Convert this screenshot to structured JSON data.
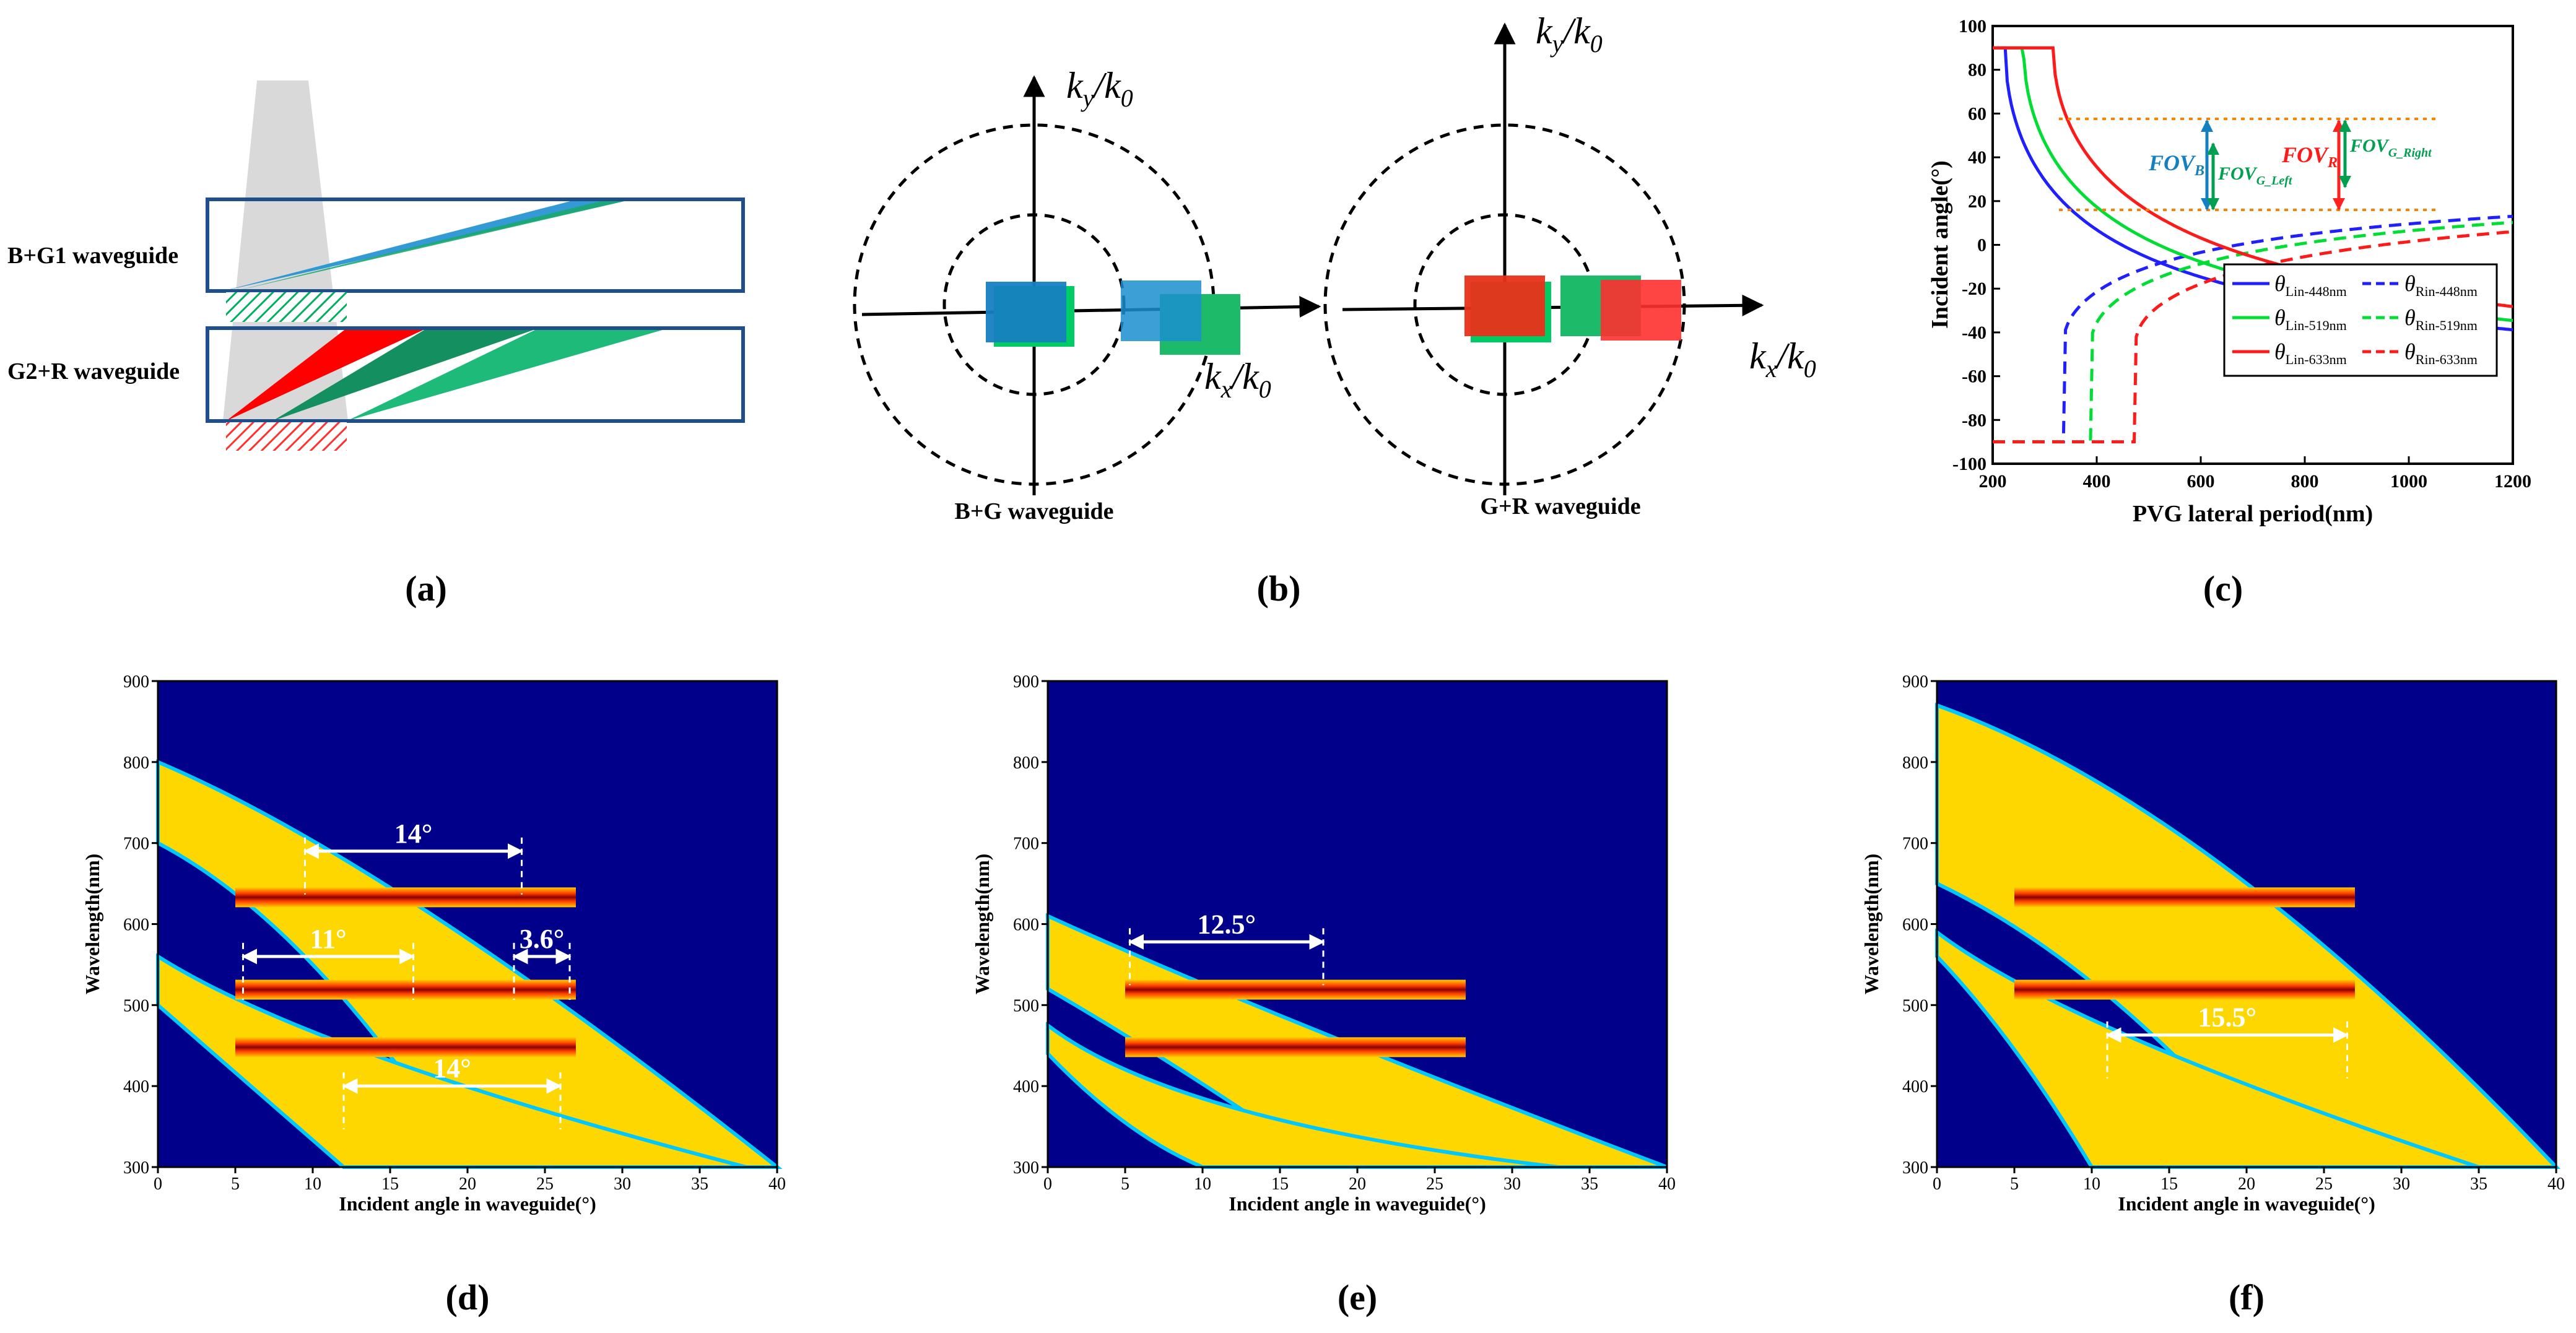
{
  "panels": {
    "a": {
      "label": "(a)",
      "wg1_label": "B+G1 waveguide",
      "wg2_label": "G2+R waveguide"
    },
    "b": {
      "label": "(b)",
      "ky": "k",
      "ky_sub": "y",
      "k0": "k",
      "k0_sub": "0",
      "kx": "k",
      "kx_sub": "x",
      "left_caption": "B+G waveguide",
      "right_caption": "G+R waveguide"
    },
    "c": {
      "label": "(c)",
      "xlabel": "PVG lateral period(nm)",
      "ylabel": "Incident angle(°)",
      "xticks": [
        "200",
        "400",
        "600",
        "800",
        "1000",
        "1200"
      ],
      "yticks": [
        "-100",
        "-80",
        "-60",
        "-40",
        "-20",
        "0",
        "20",
        "40",
        "60",
        "80",
        "100"
      ],
      "legend": [
        {
          "theta": "θ",
          "sub": "Lin-448nm",
          "color": "#1f1fff",
          "dash": false
        },
        {
          "theta": "θ",
          "sub": "Rin-448nm",
          "color": "#1f1fff",
          "dash": true
        },
        {
          "theta": "θ",
          "sub": "Lin-519nm",
          "color": "#00dd33",
          "dash": false
        },
        {
          "theta": "θ",
          "sub": "Rin-519nm",
          "color": "#00dd33",
          "dash": true
        },
        {
          "theta": "θ",
          "sub": "Lin-633nm",
          "color": "#ff1a1a",
          "dash": false
        },
        {
          "theta": "θ",
          "sub": "Rin-633nm",
          "color": "#ff1a1a",
          "dash": true
        }
      ],
      "fov_b": "FOV",
      "fov_b_sub": "B",
      "fov_gleft": "FOV",
      "fov_gleft_sub": "G_Left",
      "fov_r": "FOV",
      "fov_r_sub": "R",
      "fov_gright": "FOV",
      "fov_gright_sub": "G_Right"
    },
    "d": {
      "label": "(d)",
      "xlabel": "Incident angle in waveguide(°)",
      "ylabel": "Wavelength(nm)",
      "xticks": [
        "0",
        "5",
        "10",
        "15",
        "20",
        "25",
        "30",
        "35",
        "40"
      ],
      "yticks": [
        "300",
        "400",
        "500",
        "600",
        "700",
        "800",
        "900"
      ],
      "ann1": "14°",
      "ann2": "11°",
      "ann3": "3.6°",
      "ann4": "14°"
    },
    "e": {
      "label": "(e)",
      "xlabel": "Incident angle in waveguide(°)",
      "ylabel": "Wavelength(nm)",
      "xticks": [
        "0",
        "5",
        "10",
        "15",
        "20",
        "25",
        "30",
        "35",
        "40"
      ],
      "yticks": [
        "300",
        "400",
        "500",
        "600",
        "700",
        "800",
        "900"
      ],
      "ann1": "12.5°"
    },
    "f": {
      "label": "(f)",
      "xlabel": "Incident angle in waveguide(°)",
      "ylabel": "Wavelength(nm)",
      "xticks": [
        "0",
        "5",
        "10",
        "15",
        "20",
        "25",
        "30",
        "35",
        "40"
      ],
      "yticks": [
        "300",
        "400",
        "500",
        "600",
        "700",
        "800",
        "900"
      ],
      "ann1": "15.5°"
    }
  },
  "chart_data": [
    {
      "type": "line",
      "panel": "c",
      "xlabel": "PVG lateral period(nm)",
      "ylabel": "Incident angle(°)",
      "xlim": [
        200,
        1200
      ],
      "ylim": [
        -100,
        100
      ],
      "series": [
        {
          "name": "θLin-448nm",
          "wavelength": 448,
          "kind": "Lin"
        },
        {
          "name": "θRin-448nm",
          "wavelength": 448,
          "kind": "Rin"
        },
        {
          "name": "θLin-519nm",
          "wavelength": 519,
          "kind": "Lin"
        },
        {
          "name": "θRin-519nm",
          "wavelength": 519,
          "kind": "Rin"
        },
        {
          "name": "θLin-633nm",
          "wavelength": 633,
          "kind": "Lin"
        },
        {
          "name": "θRin-633nm",
          "wavelength": 633,
          "kind": "Rin"
        }
      ],
      "fov_lines_deg": [
        15,
        57
      ],
      "fov_period_nm": {
        "B": 620,
        "G": 640,
        "R": 870,
        "G_right": 885
      }
    },
    {
      "type": "heatmap",
      "panel": "d",
      "xlim": [
        0,
        40
      ],
      "ylim": [
        300,
        900
      ],
      "bars": [
        {
          "wl": 633,
          "x0": 5,
          "x1": 27
        },
        {
          "wl": 519,
          "x0": 5,
          "x1": 27
        },
        {
          "wl": 448,
          "x0": 5,
          "x1": 27
        }
      ],
      "annotations": [
        {
          "text": "14°",
          "x0": 9.5,
          "x1": 23.5,
          "wl": 690
        },
        {
          "text": "11°",
          "x0": 5.5,
          "x1": 16.5,
          "wl": 560
        },
        {
          "text": "3.6°",
          "x0": 23,
          "x1": 26.6,
          "wl": 560
        },
        {
          "text": "14°",
          "x0": 12,
          "x1": 26,
          "wl": 400
        }
      ]
    },
    {
      "type": "heatmap",
      "panel": "e",
      "xlim": [
        0,
        40
      ],
      "ylim": [
        300,
        900
      ],
      "bars": [
        {
          "wl": 519,
          "x0": 5,
          "x1": 27
        },
        {
          "wl": 448,
          "x0": 5,
          "x1": 27
        }
      ],
      "annotations": [
        {
          "text": "12.5°",
          "x0": 5.3,
          "x1": 17.8,
          "wl": 578
        }
      ]
    },
    {
      "type": "heatmap",
      "panel": "f",
      "xlim": [
        0,
        40
      ],
      "ylim": [
        300,
        900
      ],
      "bars": [
        {
          "wl": 633,
          "x0": 5,
          "x1": 27
        },
        {
          "wl": 519,
          "x0": 5,
          "x1": 27
        }
      ],
      "annotations": [
        {
          "text": "15.5°",
          "x0": 11,
          "x1": 26.5,
          "wl": 463
        }
      ]
    }
  ]
}
